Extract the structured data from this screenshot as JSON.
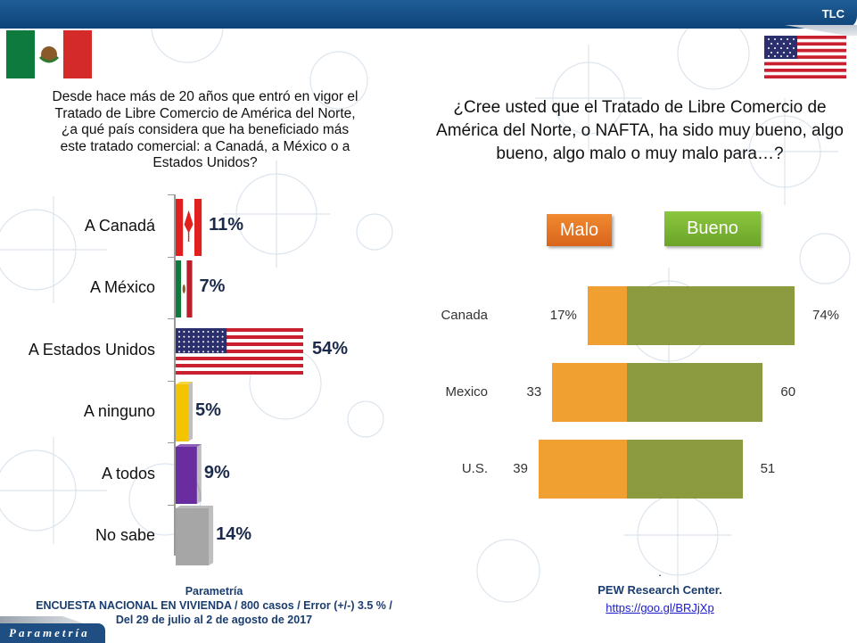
{
  "header": {
    "title": "TLC"
  },
  "left_panel": {
    "question": "Desde hace más de 20 años que entró en vigor el Tratado de Libre Comercio de América del Norte, ¿a qué país considera que ha beneficiado más este tratado comercial: a Canadá, a México o a Estados Unidos?",
    "question_lines": [
      "Desde hace más de 20 años que entró en vigor el",
      "Tratado de Libre Comercio de América del Norte,",
      "¿a qué país considera que ha beneficiado más",
      "este tratado comercial: a Canadá, a México o a",
      "Estados Unidos?"
    ],
    "footer": {
      "source": "Parametría",
      "line1": "ENCUESTA NACIONAL EN VIVIENDA / 800 casos / Error (+/-) 3.5 % /",
      "line2": "Del 29 de julio al 2 de agosto de 2017"
    },
    "brand": "Parametría"
  },
  "right_panel": {
    "question_lines": [
      "¿Cree usted que el Tratado de Libre Comercio de",
      "América del Norte, o NAFTA, ha sido muy bueno, algo",
      "bueno, algo malo o muy malo para…?"
    ],
    "footer": {
      "dot": ".",
      "source": "PEW Research Center.",
      "link": "https://goo.gl/BRJjXp"
    }
  },
  "chart_data": [
    {
      "type": "bar",
      "orientation": "horizontal",
      "title": "Desde hace más de 20 años que entró en vigor el Tratado de Libre Comercio de América del Norte, ¿a qué país considera que ha beneficiado más este tratado comercial: a Canadá, a México o a Estados Unidos?",
      "categories": [
        "A Canadá",
        "A México",
        "A Estados Unidos",
        "A ninguno",
        "A todos",
        "No sabe"
      ],
      "values": [
        11,
        7,
        54,
        5,
        9,
        14
      ],
      "labels": [
        "11%",
        "7%",
        "54%",
        "5%",
        "9%",
        "14%"
      ],
      "fills": [
        "flag-canada",
        "flag-mexico",
        "flag-usa",
        "#f2c500",
        "#6a2da0",
        "#a6a6a6"
      ],
      "xlim": [
        0,
        60
      ],
      "unit": "%"
    },
    {
      "type": "bar",
      "orientation": "horizontal",
      "stacked": "diverging",
      "title": "¿Cree usted que el Tratado de Libre Comercio de América del Norte, o NAFTA, ha sido muy bueno, algo bueno, algo malo o muy malo para…?",
      "categories": [
        "Canada",
        "Mexico",
        "U.S."
      ],
      "legend": [
        {
          "name": "Malo",
          "color": "#e8772a"
        },
        {
          "name": "Bueno",
          "color": "#7cb534"
        }
      ],
      "series": [
        {
          "name": "Malo",
          "values": [
            17,
            33,
            39
          ],
          "labels": [
            "17%",
            "33",
            "39"
          ],
          "color": "#f0a030"
        },
        {
          "name": "Bueno",
          "values": [
            74,
            60,
            51
          ],
          "labels": [
            "74%",
            "60",
            "51"
          ],
          "color": "#8c9a40"
        }
      ]
    }
  ]
}
